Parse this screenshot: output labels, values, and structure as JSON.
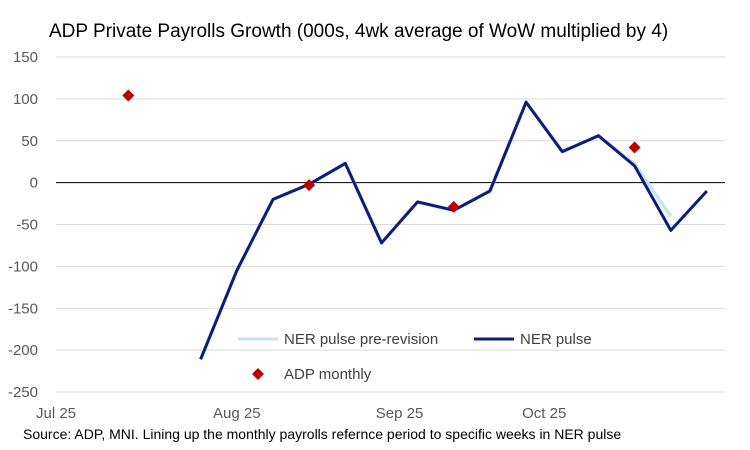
{
  "chart_data": {
    "type": "line",
    "title": "ADP Private Payrolls Growth (000s, 4wk average of WoW multiplied by 4)",
    "source": "Source: ADP, MNI. Lining up the monthly payrolls refernce period to specific weeks in NER pulse",
    "ylim": [
      -250,
      150
    ],
    "yticks": [
      150,
      100,
      50,
      0,
      -50,
      -100,
      -150,
      -200,
      -250
    ],
    "ytick_labels": [
      "150",
      "100",
      "50",
      "0",
      "-50",
      "-100",
      "-150",
      "-200",
      "-250"
    ],
    "xlim": [
      0,
      18.5
    ],
    "xticks": [
      {
        "x": 0,
        "label": "Jul 25"
      },
      {
        "x": 5,
        "label": "Aug 25"
      },
      {
        "x": 9.5,
        "label": "Sep 25"
      },
      {
        "x": 13.5,
        "label": "Oct 25"
      }
    ],
    "series": [
      {
        "name": "NER pulse pre-revision",
        "style": "line",
        "color": "#c5e3f5",
        "points": [
          [
            4,
            -211
          ],
          [
            5,
            -105
          ],
          [
            6,
            -20
          ],
          [
            7,
            -2
          ],
          [
            8,
            23
          ],
          [
            9,
            -72
          ],
          [
            10,
            -23
          ],
          [
            11,
            -33
          ],
          [
            12,
            -10
          ],
          [
            13,
            96
          ],
          [
            14,
            37
          ],
          [
            15,
            56
          ],
          [
            16,
            22
          ],
          [
            17,
            -40
          ]
        ]
      },
      {
        "name": "NER pulse",
        "style": "line",
        "color": "#0e1c7a",
        "points": [
          [
            4,
            -211
          ],
          [
            5,
            -105
          ],
          [
            6,
            -20
          ],
          [
            7,
            -2
          ],
          [
            8,
            23
          ],
          [
            9,
            -72
          ],
          [
            10,
            -23
          ],
          [
            11,
            -33
          ],
          [
            12,
            -10
          ],
          [
            13,
            96
          ],
          [
            14,
            37
          ],
          [
            15,
            56
          ],
          [
            16,
            20
          ],
          [
            17,
            -57
          ],
          [
            18,
            -10
          ]
        ]
      },
      {
        "name": "ADP monthly",
        "style": "scatter",
        "color": "#c00000",
        "points": [
          [
            2,
            104
          ],
          [
            7,
            -3
          ],
          [
            11,
            -29
          ],
          [
            16,
            42
          ]
        ]
      }
    ],
    "legend": [
      {
        "name": "NER pulse pre-revision",
        "marker": "line",
        "color": "#c5e3f5"
      },
      {
        "name": "NER pulse",
        "marker": "line",
        "color": "#0e1c7a"
      },
      {
        "name": "ADP monthly",
        "marker": "diamond",
        "color": "#c00000"
      }
    ]
  }
}
